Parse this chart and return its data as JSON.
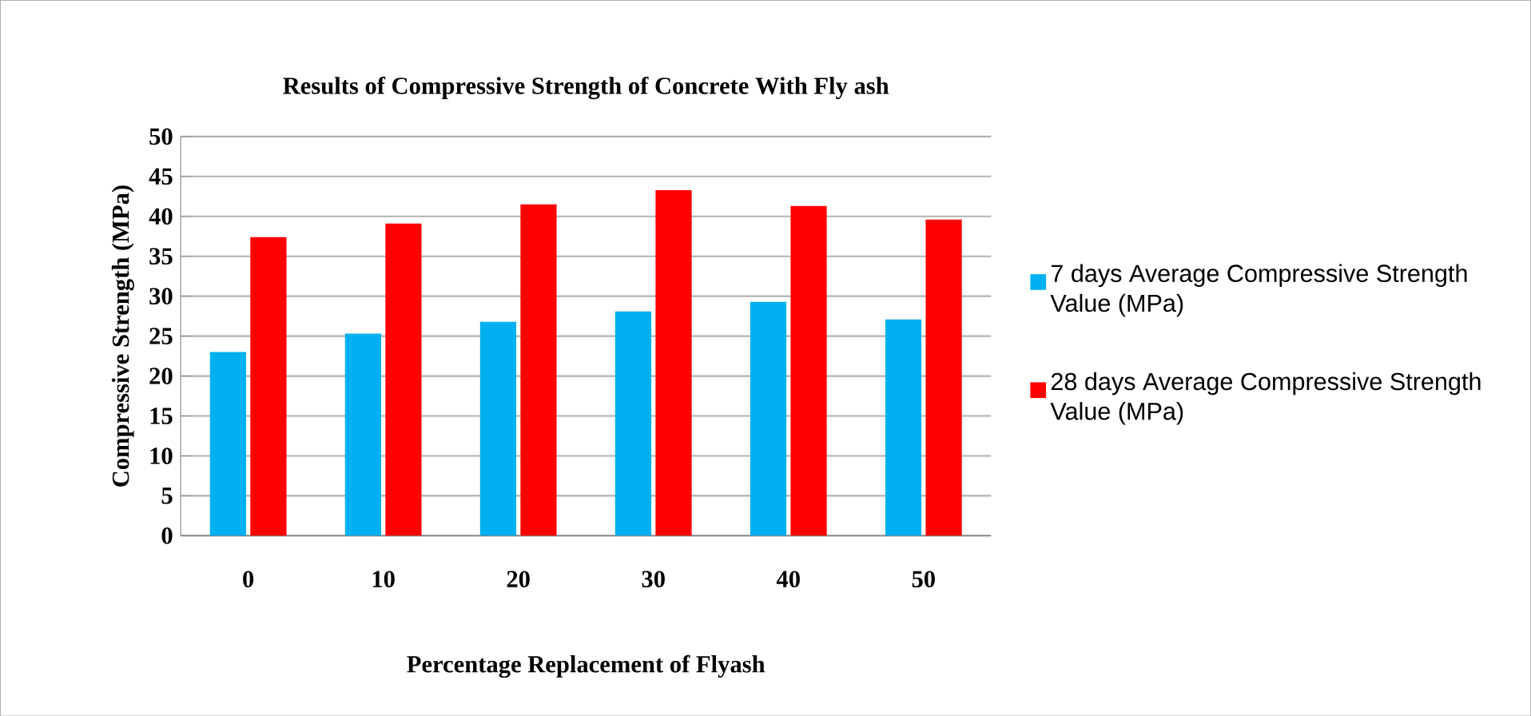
{
  "chart_data": {
    "type": "bar",
    "title": "Results of  Compressive Strength of  Concrete With  Fly ash",
    "xlabel": "Percentage  Replacement of  Flyash",
    "ylabel": "Compressive Strength (MPa)",
    "categories": [
      "0",
      "10",
      "20",
      "30",
      "40",
      "50"
    ],
    "series": [
      {
        "name": "7 days Average Compressive Strength Value (MPa)",
        "color": "#00b0f0",
        "values": [
          23,
          25.3,
          26.8,
          28.1,
          29.3,
          27.1
        ]
      },
      {
        "name": "28 days Average Compressive Strength  Value (MPa)",
        "color": "#ff0000",
        "values": [
          37.4,
          39.1,
          41.5,
          43.3,
          41.3,
          39.6
        ]
      }
    ],
    "ylim": [
      0,
      50
    ],
    "yticks": [
      0,
      5,
      10,
      15,
      20,
      25,
      30,
      35,
      40,
      45,
      50
    ],
    "grid": "y",
    "legend": "right"
  }
}
